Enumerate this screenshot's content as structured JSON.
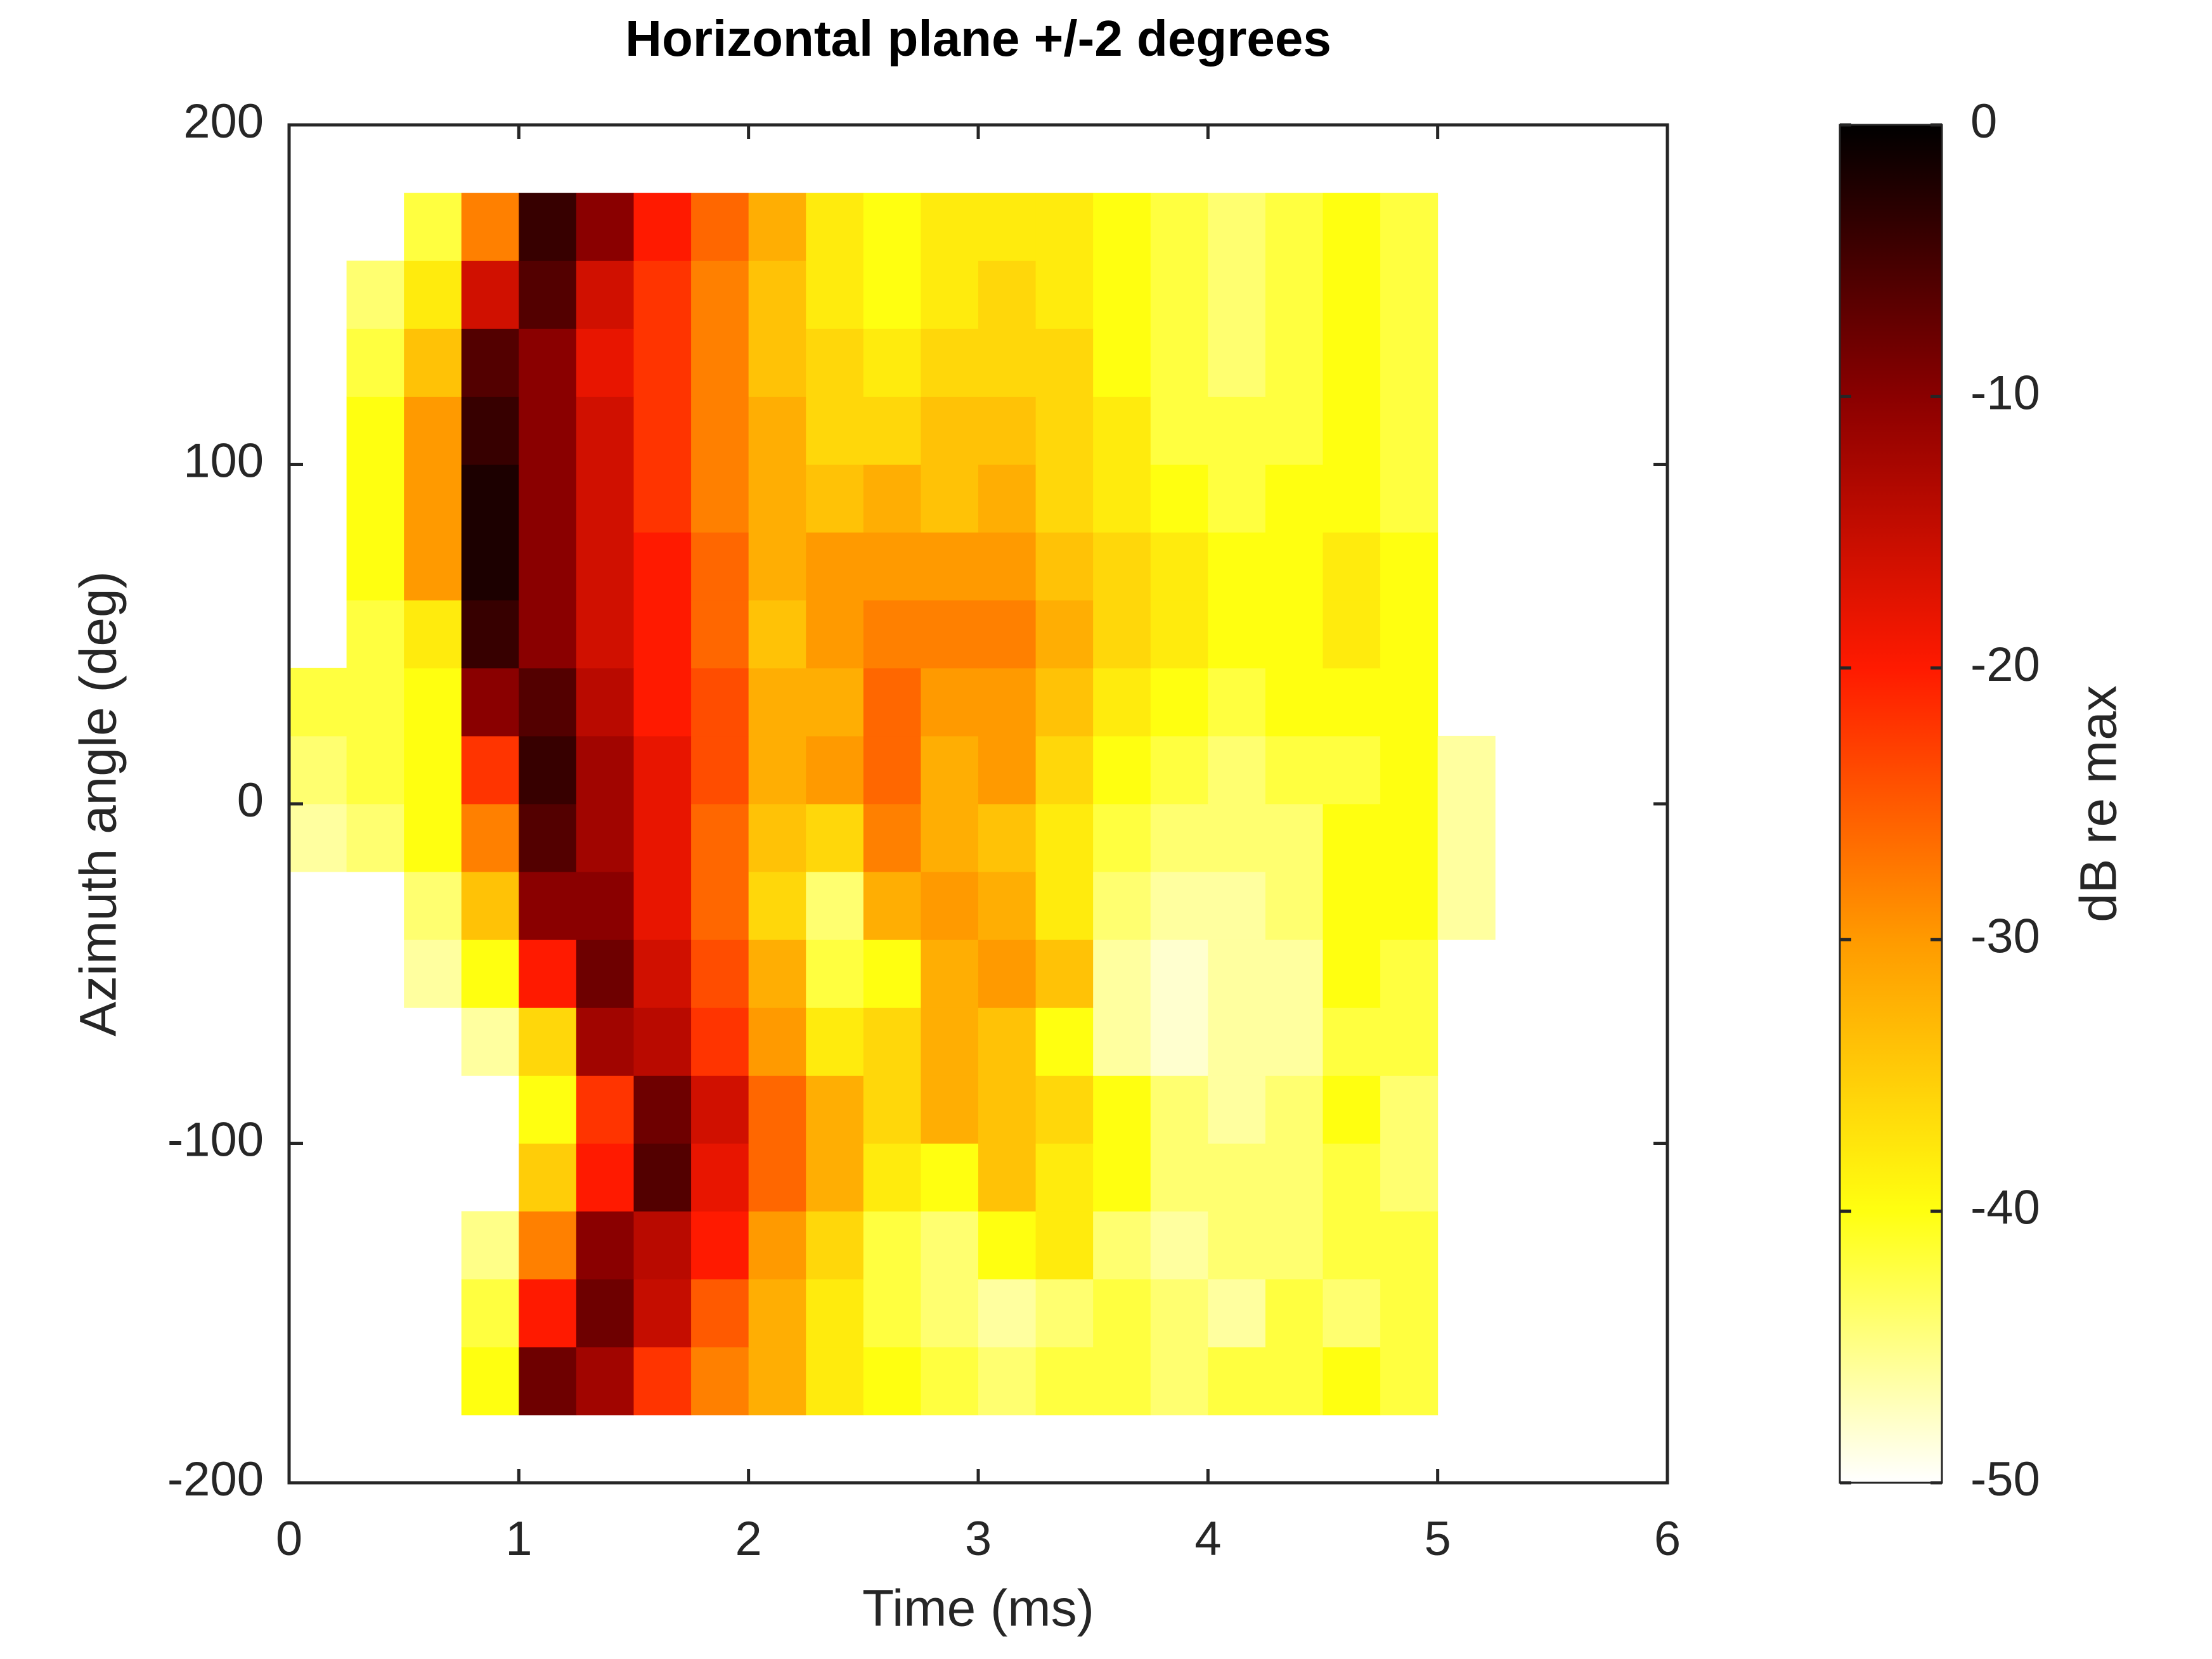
{
  "chart_data": {
    "type": "heatmap",
    "title": "Horizontal plane +/-2 degrees",
    "xlabel": "Time (ms)",
    "ylabel": "Azimuth angle (deg)",
    "colorbar_label": "dB re max",
    "xlim": [
      0,
      6
    ],
    "xticks": [
      0,
      1,
      2,
      3,
      4,
      5,
      6
    ],
    "ylim": [
      -200,
      200
    ],
    "yticks": [
      -200,
      -100,
      0,
      100,
      200
    ],
    "clim": [
      -50,
      0
    ],
    "cticks": [
      0,
      -10,
      -20,
      -30,
      -40,
      -50
    ],
    "colormap": [
      "#ffffff",
      "#ffff10",
      "#ff9a00",
      "#ff1a00",
      "#8a0000",
      "#000000"
    ],
    "x": [
      0.125,
      0.375,
      0.625,
      0.875,
      1.125,
      1.375,
      1.625,
      1.875,
      2.125,
      2.375,
      2.625,
      2.875,
      3.125,
      3.375,
      3.625,
      3.875,
      4.125,
      4.375,
      4.625,
      4.875,
      5.125
    ],
    "y": [
      -170,
      -150,
      -130,
      -110,
      -90,
      -70,
      -50,
      -30,
      -10,
      10,
      30,
      50,
      70,
      90,
      110,
      130,
      150,
      170
    ],
    "values": [
      [
        null,
        null,
        null,
        -40,
        -8,
        -12,
        -22,
        -28,
        -32,
        -38,
        -40,
        -42,
        -44,
        -42,
        -42,
        -44,
        -42,
        -42,
        -40,
        -42,
        null
      ],
      [
        null,
        null,
        null,
        -42,
        -20,
        -8,
        -15,
        -25,
        -32,
        -38,
        -42,
        -44,
        -46,
        -44,
        -42,
        -44,
        -46,
        -42,
        -44,
        -42,
        null
      ],
      [
        null,
        null,
        null,
        -45,
        -28,
        -10,
        -14,
        -20,
        -30,
        -36,
        -42,
        -44,
        -40,
        -38,
        -44,
        -46,
        -44,
        -44,
        -42,
        -42,
        null
      ],
      [
        null,
        null,
        null,
        null,
        -35,
        -20,
        -6,
        -18,
        -26,
        -32,
        -38,
        -40,
        -34,
        -38,
        -40,
        -44,
        -44,
        -44,
        -42,
        -44,
        null
      ],
      [
        null,
        null,
        null,
        null,
        -40,
        -22,
        -8,
        -16,
        -26,
        -32,
        -36,
        -32,
        -34,
        -36,
        -40,
        -44,
        -46,
        -44,
        -40,
        -44,
        null
      ],
      [
        null,
        null,
        null,
        -46,
        -36,
        -12,
        -14,
        -22,
        -30,
        -38,
        -36,
        -32,
        -34,
        -40,
        -46,
        -48,
        -46,
        -46,
        -42,
        -42,
        null
      ],
      [
        null,
        null,
        -46,
        -40,
        -20,
        -8,
        -16,
        -24,
        -32,
        -42,
        -40,
        -32,
        -30,
        -34,
        -46,
        -48,
        -46,
        -46,
        -40,
        -42,
        null
      ],
      [
        null,
        null,
        -44,
        -34,
        -10,
        -10,
        -18,
        -26,
        -36,
        -44,
        -32,
        -30,
        -32,
        -38,
        -44,
        -46,
        -46,
        -44,
        -40,
        -40,
        -46
      ],
      [
        -46,
        -44,
        -40,
        -28,
        -6,
        -12,
        -18,
        -26,
        -34,
        -36,
        -28,
        -32,
        -34,
        -38,
        -42,
        -44,
        -44,
        -44,
        -40,
        -40,
        -46
      ],
      [
        -44,
        -42,
        -40,
        -22,
        -4,
        -12,
        -18,
        -24,
        -32,
        -30,
        -26,
        -32,
        -30,
        -36,
        -40,
        -42,
        -44,
        -42,
        -42,
        -40,
        -46
      ],
      [
        -42,
        -42,
        -40,
        -10,
        -6,
        -14,
        -20,
        -24,
        -32,
        -32,
        -26,
        -30,
        -30,
        -34,
        -38,
        -40,
        -42,
        -40,
        -40,
        -40,
        null
      ],
      [
        null,
        -42,
        -38,
        -4,
        -10,
        -16,
        -20,
        -26,
        -34,
        -30,
        -28,
        -28,
        -28,
        -32,
        -36,
        -38,
        -40,
        -40,
        -38,
        -40,
        null
      ],
      [
        null,
        -40,
        -30,
        -2,
        -10,
        -16,
        -20,
        -26,
        -32,
        -30,
        -30,
        -30,
        -30,
        -34,
        -36,
        -38,
        -40,
        -40,
        -38,
        -40,
        null
      ],
      [
        null,
        -40,
        -30,
        -2,
        -10,
        -16,
        -22,
        -28,
        -32,
        -34,
        -32,
        -34,
        -32,
        -36,
        -38,
        -40,
        -42,
        -40,
        -40,
        -42,
        null
      ],
      [
        null,
        -40,
        -30,
        -4,
        -10,
        -16,
        -22,
        -28,
        -32,
        -36,
        -36,
        -34,
        -34,
        -36,
        -38,
        -42,
        -42,
        -42,
        -40,
        -42,
        null
      ],
      [
        null,
        -42,
        -34,
        -6,
        -10,
        -18,
        -22,
        -28,
        -34,
        -36,
        -38,
        -36,
        -36,
        -36,
        -40,
        -42,
        -44,
        -42,
        -40,
        -42,
        null
      ],
      [
        null,
        -44,
        -38,
        -16,
        -6,
        -16,
        -22,
        -28,
        -34,
        -38,
        -40,
        -38,
        -36,
        -38,
        -40,
        -42,
        -44,
        -42,
        -40,
        -42,
        null
      ],
      [
        null,
        null,
        -42,
        -28,
        -4,
        -10,
        -20,
        -26,
        -32,
        -38,
        -40,
        -38,
        -38,
        -38,
        -40,
        -42,
        -44,
        -42,
        -40,
        -42,
        null
      ]
    ]
  }
}
